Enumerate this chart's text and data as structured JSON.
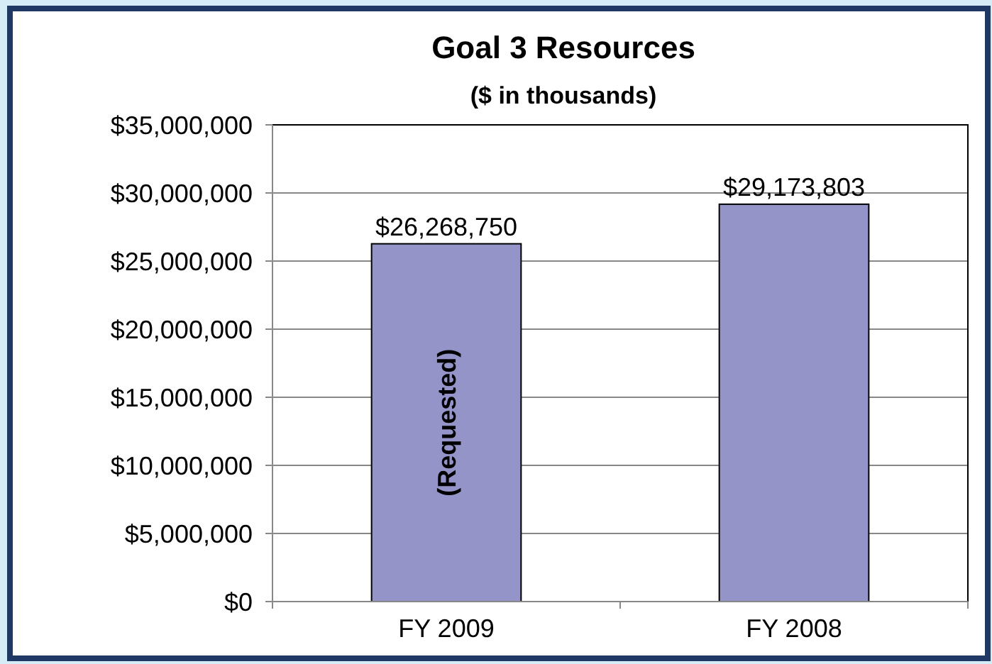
{
  "chart_data": {
    "type": "bar",
    "title": "Goal 3 Resources",
    "subtitle": "($ in thousands)",
    "categories": [
      "FY 2009",
      "FY 2008"
    ],
    "values": [
      26268750,
      29173803
    ],
    "value_labels": [
      "$26,268,750",
      "$29,173,803"
    ],
    "color": "#9494c8",
    "ylim": [
      0,
      35000000
    ],
    "yticks": [
      {
        "value": 0,
        "label": "$0"
      },
      {
        "value": 5000000,
        "label": "$5,000,000"
      },
      {
        "value": 10000000,
        "label": "$10,000,000"
      },
      {
        "value": 15000000,
        "label": "$15,000,000"
      },
      {
        "value": 20000000,
        "label": "$20,000,000"
      },
      {
        "value": 25000000,
        "label": "$25,000,000"
      },
      {
        "value": 30000000,
        "label": "$30,000,000"
      },
      {
        "value": 35000000,
        "label": "$35,000,000"
      }
    ],
    "grid": "y",
    "annotations": [
      "(Requested)"
    ]
  }
}
